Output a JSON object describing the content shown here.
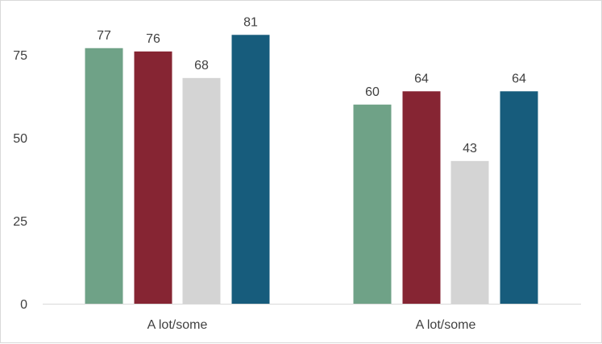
{
  "chart_data": {
    "type": "bar",
    "title": "",
    "xlabel": "",
    "ylabel": "",
    "categories": [
      "A lot/some",
      "A lot/some"
    ],
    "series": [
      {
        "values": [
          77,
          60
        ],
        "color": "#6fa287"
      },
      {
        "values": [
          76,
          64
        ],
        "color": "#862533"
      },
      {
        "values": [
          68,
          43
        ],
        "color": "#d4d4d4"
      },
      {
        "values": [
          81,
          64
        ],
        "color": "#175c7c"
      }
    ],
    "ylim": [
      0,
      85
    ],
    "yticks": [
      0,
      25,
      50,
      75
    ],
    "grid": false,
    "legend": "none",
    "axis_color": "#d9d9d9",
    "text_color": "#404040"
  }
}
